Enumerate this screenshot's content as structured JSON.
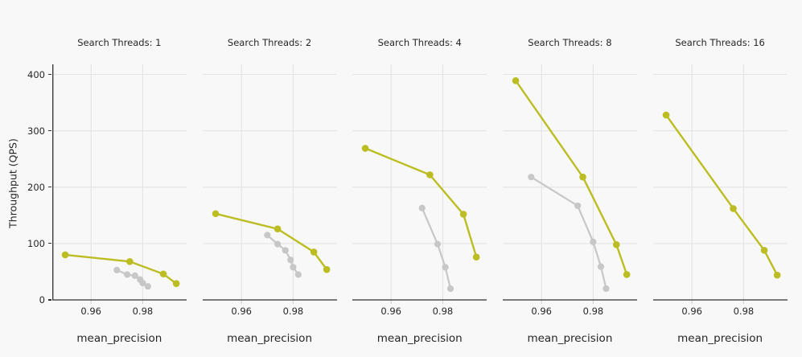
{
  "figure": {
    "background": "#f8f8f8",
    "panel_background": "#f8f8f8",
    "grid_color": "#e3e3e3",
    "axis_line_color": "#2e2e2e",
    "tick_color": "#333333",
    "text_color": "#262626"
  },
  "ylabel": "Throughput (QPS)",
  "xlabel": "mean_precision",
  "chart_data": {
    "type": "line",
    "title": "",
    "xlabel": "mean_precision",
    "ylabel": "Throughput (QPS)",
    "xlim": [
      0.945,
      0.997
    ],
    "ylim": [
      0,
      418
    ],
    "xticks": [
      0.96,
      0.98
    ],
    "yticks": [
      0,
      100,
      200,
      300,
      400
    ],
    "grid": true,
    "legend": "none",
    "series_colors": {
      "olive": "#bcbd22",
      "gray": "#c7c7c7"
    },
    "facets": [
      {
        "title": "Search Threads: 1",
        "series": [
          {
            "name": "gray",
            "color": "#c7c7c7",
            "points": [
              [
                0.97,
                53
              ],
              [
                0.974,
                45
              ],
              [
                0.977,
                43
              ],
              [
                0.979,
                36
              ],
              [
                0.98,
                30
              ],
              [
                0.982,
                24
              ]
            ]
          },
          {
            "name": "olive",
            "color": "#bcbd22",
            "points": [
              [
                0.95,
                80
              ],
              [
                0.975,
                68
              ],
              [
                0.988,
                46
              ],
              [
                0.993,
                29
              ]
            ]
          }
        ]
      },
      {
        "title": "Search Threads: 2",
        "series": [
          {
            "name": "gray",
            "color": "#c7c7c7",
            "points": [
              [
                0.97,
                115
              ],
              [
                0.974,
                99
              ],
              [
                0.977,
                88
              ],
              [
                0.979,
                71
              ],
              [
                0.98,
                58
              ],
              [
                0.982,
                45
              ]
            ]
          },
          {
            "name": "olive",
            "color": "#bcbd22",
            "points": [
              [
                0.95,
                153
              ],
              [
                0.974,
                126
              ],
              [
                0.988,
                85
              ],
              [
                0.993,
                54
              ]
            ]
          }
        ]
      },
      {
        "title": "Search Threads: 4",
        "series": [
          {
            "name": "gray",
            "color": "#c7c7c7",
            "points": [
              [
                0.972,
                163
              ],
              [
                0.978,
                99
              ],
              [
                0.981,
                58
              ],
              [
                0.983,
                20
              ]
            ]
          },
          {
            "name": "olive",
            "color": "#bcbd22",
            "points": [
              [
                0.95,
                269
              ],
              [
                0.975,
                222
              ],
              [
                0.988,
                152
              ],
              [
                0.993,
                76
              ]
            ]
          }
        ]
      },
      {
        "title": "Search Threads: 8",
        "series": [
          {
            "name": "gray",
            "color": "#c7c7c7",
            "points": [
              [
                0.956,
                218
              ],
              [
                0.974,
                167
              ],
              [
                0.98,
                103
              ],
              [
                0.983,
                59
              ],
              [
                0.985,
                20
              ]
            ]
          },
          {
            "name": "olive",
            "color": "#bcbd22",
            "points": [
              [
                0.95,
                389
              ],
              [
                0.976,
                218
              ],
              [
                0.989,
                98
              ],
              [
                0.993,
                45
              ]
            ]
          }
        ]
      },
      {
        "title": "Search Threads: 16",
        "series": [
          {
            "name": "gray",
            "color": "#c7c7c7",
            "points": []
          },
          {
            "name": "olive",
            "color": "#bcbd22",
            "points": [
              [
                0.95,
                328
              ],
              [
                0.976,
                162
              ],
              [
                0.988,
                88
              ],
              [
                0.993,
                44
              ]
            ]
          }
        ]
      }
    ]
  }
}
